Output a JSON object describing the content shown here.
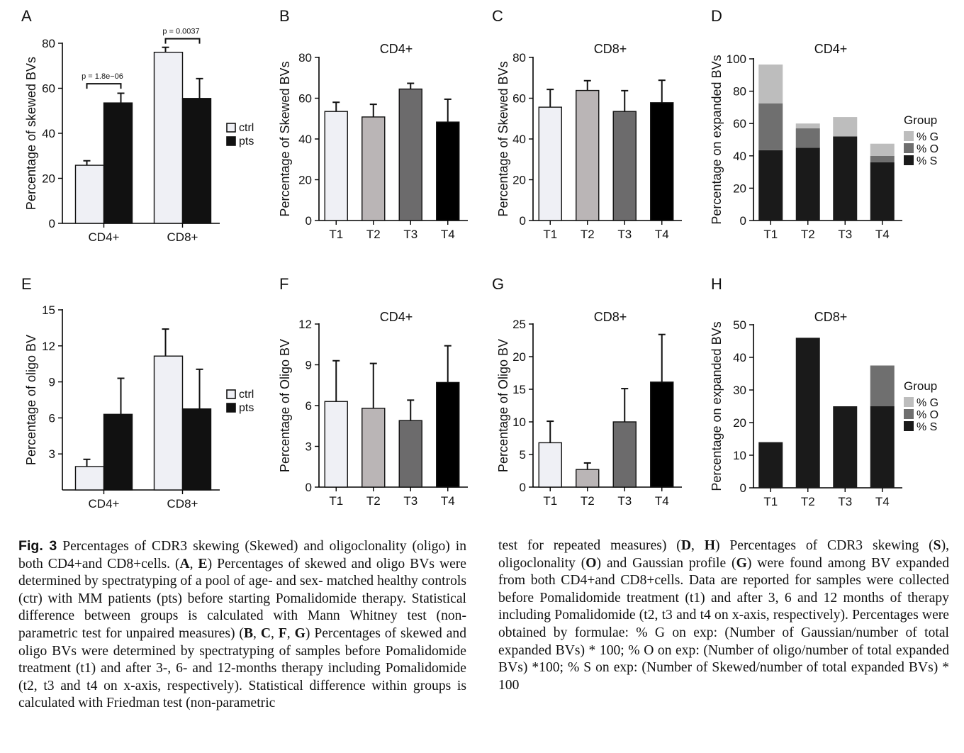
{
  "panels": [
    {
      "letter": "A",
      "title": "",
      "ylabel": "Percentage of skewed BVs",
      "caption_text": "",
      "chart_data": {
        "type": "bar",
        "categories": [
          "CD4+",
          "CD8+"
        ],
        "series": [
          {
            "name": "ctrl",
            "color": "#eff0f5",
            "values": [
              25.8,
              76.0
            ],
            "errors": [
              2.0,
              2.2
            ]
          },
          {
            "name": "pts",
            "color": "#111111",
            "values": [
              53.5,
              55.5
            ],
            "errors": [
              4.3,
              8.8
            ]
          }
        ],
        "ylim": [
          0,
          80
        ],
        "yticks": [
          0,
          20,
          40,
          60,
          80
        ],
        "legend": "right",
        "annotations": [
          {
            "text": "p = 1.8e−06",
            "category": 0,
            "y": 62
          },
          {
            "text": "p = 0.0037",
            "category": 1,
            "y": 82
          }
        ]
      }
    },
    {
      "letter": "B",
      "title": "CD4+",
      "ylabel": "Percentage of Skewed BVs",
      "chart_data": {
        "type": "bar",
        "categories": [
          "T1",
          "T2",
          "T3",
          "T4"
        ],
        "values": [
          53.5,
          50.8,
          64.5,
          48.3
        ],
        "errors": [
          4.5,
          6.2,
          2.8,
          11.2
        ],
        "colors": [
          "#eff0f5",
          "#bab5b6",
          "#6c6b6c",
          "#000000"
        ],
        "ylim": [
          0,
          80
        ],
        "yticks": [
          0,
          20,
          40,
          60,
          80
        ]
      }
    },
    {
      "letter": "C",
      "title": "CD8+",
      "ylabel": "Percentage of Skewed BVs",
      "chart_data": {
        "type": "bar",
        "categories": [
          "T1",
          "T2",
          "T3",
          "T4"
        ],
        "values": [
          55.6,
          63.8,
          53.5,
          57.8
        ],
        "errors": [
          8.7,
          4.8,
          10.2,
          11.0
        ],
        "colors": [
          "#eff0f5",
          "#bab5b6",
          "#6c6b6c",
          "#000000"
        ],
        "ylim": [
          0,
          80
        ],
        "yticks": [
          0,
          20,
          40,
          60,
          80
        ]
      }
    },
    {
      "letter": "D",
      "title": "CD4+",
      "ylabel": "Percentage on expanded BVs",
      "chart_data": {
        "type": "bar",
        "stacked": true,
        "categories": [
          "T1",
          "T2",
          "T3",
          "T4"
        ],
        "series": [
          {
            "name": "% S",
            "color": "#1a1a1a",
            "values": [
              43.5,
              45.0,
              52.0,
              36.0
            ]
          },
          {
            "name": "% O",
            "color": "#6f6f6f",
            "values": [
              29.0,
              12.0,
              0.0,
              4.0
            ]
          },
          {
            "name": "% G",
            "color": "#bdbdbd",
            "values": [
              24.0,
              3.0,
              12.0,
              7.5
            ]
          }
        ],
        "ylim": [
          0,
          100
        ],
        "yticks": [
          0,
          20,
          40,
          60,
          80,
          100
        ],
        "legend_title": "Group",
        "legend": "right"
      }
    },
    {
      "letter": "E",
      "title": "",
      "ylabel": "Percentage of oligo BV",
      "chart_data": {
        "type": "bar",
        "categories": [
          "CD4+",
          "CD8+"
        ],
        "series": [
          {
            "name": "ctrl",
            "color": "#eff0f5",
            "values": [
              1.95,
              11.15
            ],
            "errors": [
              0.6,
              2.25
            ]
          },
          {
            "name": "pts",
            "color": "#111111",
            "values": [
              6.3,
              6.75
            ],
            "errors": [
              3.0,
              3.3
            ]
          }
        ],
        "ylim": [
          0,
          15
        ],
        "yticks": [
          3,
          6,
          9,
          12,
          15
        ],
        "legend": "right"
      }
    },
    {
      "letter": "F",
      "title": "CD4+",
      "ylabel": "Percentage of Oligo BV",
      "chart_data": {
        "type": "bar",
        "categories": [
          "T1",
          "T2",
          "T3",
          "T4"
        ],
        "values": [
          6.3,
          5.8,
          4.9,
          7.7
        ],
        "errors": [
          3.0,
          3.3,
          1.5,
          2.7
        ],
        "colors": [
          "#eff0f5",
          "#bab5b6",
          "#6c6b6c",
          "#000000"
        ],
        "ylim": [
          0,
          12
        ],
        "yticks": [
          0,
          3,
          6,
          9,
          12
        ]
      }
    },
    {
      "letter": "G",
      "title": "CD8+",
      "ylabel": "Percentage of Oligo BV",
      "chart_data": {
        "type": "bar",
        "categories": [
          "T1",
          "T2",
          "T3",
          "T4"
        ],
        "values": [
          6.8,
          2.7,
          10.0,
          16.1
        ],
        "errors": [
          3.3,
          1.0,
          5.1,
          7.3
        ],
        "colors": [
          "#eff0f5",
          "#bab5b6",
          "#6c6b6c",
          "#000000"
        ],
        "ylim": [
          0,
          25
        ],
        "yticks": [
          0,
          5,
          10,
          15,
          20,
          25
        ]
      }
    },
    {
      "letter": "H",
      "title": "CD8+",
      "ylabel": "Percentage on expanded BVs",
      "chart_data": {
        "type": "bar",
        "stacked": true,
        "categories": [
          "T1",
          "T2",
          "T3",
          "T4"
        ],
        "series": [
          {
            "name": "% S",
            "color": "#1a1a1a",
            "values": [
              14.0,
              46.0,
              25.0,
              25.0
            ]
          },
          {
            "name": "% O",
            "color": "#6f6f6f",
            "values": [
              0.0,
              0.0,
              0.0,
              12.5
            ]
          },
          {
            "name": "% G",
            "color": "#bdbdbd",
            "values": [
              0.0,
              0.0,
              0.0,
              0.0
            ]
          }
        ],
        "ylim": [
          0,
          50
        ],
        "yticks": [
          0,
          10,
          20,
          30,
          40,
          50
        ],
        "legend_title": "Group",
        "legend": "right"
      }
    }
  ],
  "caption": {
    "label": "Fig. 3",
    "left_paragraphs": [
      {
        "t": "Percentages of CDR3 skewing (Skewed) and oligoclonality (oligo) in both CD4+and CD8+cells. ("
      },
      {
        "b": "A"
      },
      {
        "t": ", "
      },
      {
        "b": "E"
      },
      {
        "t": ") Percentages of skewed and oligo BVs were determined by spectratyping of a pool of age- and sex- matched healthy controls (ctr) with MM patients (pts) before starting Pomalidomide therapy. Statistical difference between groups is calculated with Mann Whitney test (non-parametric test for unpaired measures) ("
      },
      {
        "b": "B"
      },
      {
        "t": ", "
      },
      {
        "b": "C"
      },
      {
        "t": ", "
      },
      {
        "b": "F"
      },
      {
        "t": ", "
      },
      {
        "b": "G"
      },
      {
        "t": ") Percentages of skewed and oligo BVs were determined by spectratyping of samples before Pomalidomide treatment (t1) and after 3-, 6- and 12-months therapy including Pomalidomide (t2, t3 and t4 on x-axis, respectively). Statistical difference within groups is calculated with Friedman test (non-parametric"
      }
    ],
    "right_paragraphs": [
      {
        "t": "test for repeated measures) ("
      },
      {
        "b": "D"
      },
      {
        "t": ", "
      },
      {
        "b": "H"
      },
      {
        "t": ") Percentages of CDR3 skewing ("
      },
      {
        "b": "S"
      },
      {
        "t": "), oligoclonality ("
      },
      {
        "b": "O"
      },
      {
        "t": ") and Gaussian profile ("
      },
      {
        "b": "G"
      },
      {
        "t": ") were found among BV expanded from both CD4+and CD8+cells. Data are reported for samples were collected before Pomalidomide treatment (t1) and after 3, 6 and 12 months of therapy including Pomalidomide (t2, t3 and t4 on x-axis, respectively). Percentages were obtained by formulae: % G on exp: (Number of Gaussian/number of total expanded BVs) * 100; % O on exp: (Number of oligo/number of total expanded BVs) *100; % S on exp: (Number of Skewed/number of total expanded BVs) * 100"
      }
    ]
  }
}
